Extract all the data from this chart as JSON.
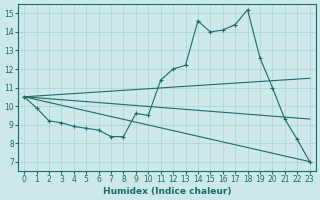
{
  "xlabel": "Humidex (Indice chaleur)",
  "background_color": "#cce8e8",
  "grid_color": "#b0d4d4",
  "line_color": "#1a6b6b",
  "xlim": [
    -0.5,
    23.5
  ],
  "ylim": [
    6.5,
    15.5
  ],
  "xticks": [
    0,
    1,
    2,
    3,
    4,
    5,
    6,
    7,
    8,
    9,
    10,
    11,
    12,
    13,
    14,
    15,
    16,
    17,
    18,
    19,
    20,
    21,
    22,
    23
  ],
  "yticks": [
    7,
    8,
    9,
    10,
    11,
    12,
    13,
    14,
    15
  ],
  "line1_x": [
    0,
    1,
    2,
    3,
    4,
    5,
    6,
    7,
    8,
    9,
    10,
    11,
    12,
    13,
    14,
    15,
    16,
    17,
    18,
    19,
    20,
    21,
    22,
    23
  ],
  "line1_y": [
    10.5,
    9.9,
    9.2,
    9.1,
    8.9,
    8.8,
    8.7,
    8.35,
    8.35,
    9.6,
    9.5,
    11.4,
    12.0,
    12.2,
    14.6,
    14.0,
    14.1,
    14.4,
    15.2,
    12.6,
    11.0,
    9.3,
    8.2,
    7.0
  ],
  "line2_x": [
    0,
    23
  ],
  "line2_y": [
    10.5,
    11.5
  ],
  "line3_x": [
    0,
    23
  ],
  "line3_y": [
    10.5,
    9.3
  ],
  "line4_x": [
    0,
    23
  ],
  "line4_y": [
    10.5,
    7.0
  ]
}
